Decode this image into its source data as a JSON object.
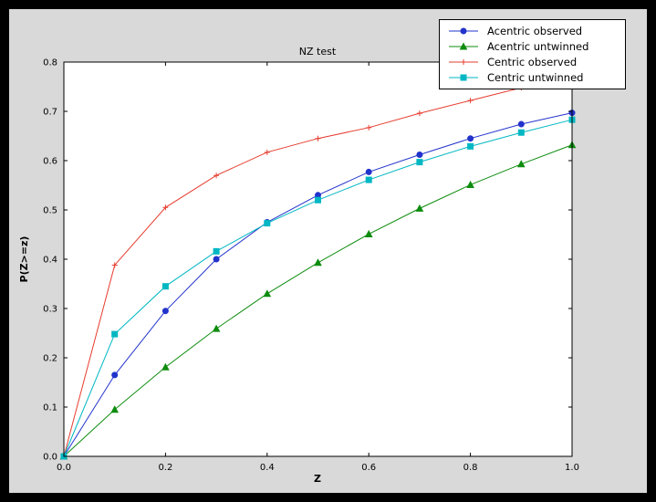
{
  "window": {
    "background": "#000000",
    "figure_bg": "#d9d9d9",
    "plot_bg": "#ffffff",
    "frame_color": "#000000"
  },
  "chart_data": {
    "type": "line",
    "title": "NZ test",
    "xlabel": "Z",
    "ylabel": "P(Z>=z)",
    "xlim": [
      0.0,
      1.0
    ],
    "ylim": [
      0.0,
      0.8
    ],
    "xticks": [
      0.0,
      0.2,
      0.4,
      0.6,
      0.8,
      1.0
    ],
    "xtick_labels": [
      "0.0",
      "0.2",
      "0.4",
      "0.6",
      "0.8",
      "1.0"
    ],
    "yticks": [
      0.0,
      0.1,
      0.2,
      0.3,
      0.4,
      0.5,
      0.6,
      0.7,
      0.8
    ],
    "ytick_labels": [
      "0.0",
      "0.1",
      "0.2",
      "0.3",
      "0.4",
      "0.5",
      "0.6",
      "0.7",
      "0.8"
    ],
    "grid": false,
    "legend_position": "upper right",
    "x": [
      0.0,
      0.1,
      0.2,
      0.3,
      0.4,
      0.5,
      0.6,
      0.7,
      0.8,
      0.9,
      1.0
    ],
    "series": [
      {
        "name": "Acentric observed",
        "color": "#2233cc",
        "marker": "circle",
        "values": [
          0.0,
          0.165,
          0.295,
          0.4,
          0.475,
          0.53,
          0.577,
          0.612,
          0.645,
          0.674,
          0.697
        ]
      },
      {
        "name": "Acentric untwinned",
        "color": "#0e8c0e",
        "marker": "triangle",
        "values": [
          0.0,
          0.095,
          0.181,
          0.259,
          0.33,
          0.393,
          0.451,
          0.503,
          0.551,
          0.593,
          0.632
        ]
      },
      {
        "name": "Centric observed",
        "color": "#e63c2e",
        "marker": "plus",
        "values": [
          0.0,
          0.388,
          0.505,
          0.57,
          0.617,
          0.645,
          0.667,
          0.696,
          0.722,
          0.748,
          0.762
        ]
      },
      {
        "name": "Centric untwinned",
        "color": "#00b7c3",
        "marker": "square",
        "values": [
          0.0,
          0.248,
          0.345,
          0.416,
          0.473,
          0.52,
          0.561,
          0.597,
          0.629,
          0.657,
          0.683
        ]
      }
    ]
  }
}
